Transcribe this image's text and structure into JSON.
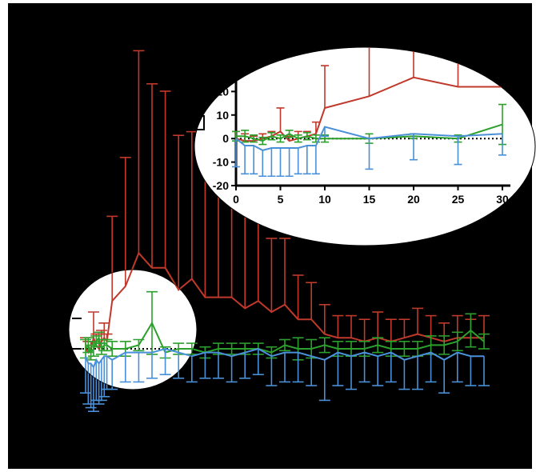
{
  "chart_data": [
    {
      "type": "line",
      "panel": "main",
      "x": [
        0,
        0.5,
        1,
        1.5,
        2,
        2.5,
        3,
        3.5,
        4,
        5,
        7.5,
        10,
        12.5,
        15,
        17.5,
        20,
        22.5,
        25,
        27.5,
        30,
        32.5,
        35,
        37.5,
        40,
        42.5,
        45,
        47.5,
        50,
        52.5,
        55,
        57.5,
        60,
        62.5,
        65,
        67.5,
        70,
        72.5,
        75
      ],
      "series": [
        {
          "color": "#c0392b",
          "values": [
            0,
            -1,
            0,
            3,
            1,
            0,
            2,
            3,
            2,
            13,
            17,
            26,
            22,
            22,
            16,
            19,
            14,
            14,
            14,
            11,
            13,
            10,
            12,
            8,
            8,
            4,
            3,
            3,
            2,
            3,
            2,
            3,
            4,
            3,
            2,
            3,
            3,
            3
          ],
          "err": [
            3,
            3,
            2,
            7,
            3,
            4,
            3,
            4,
            2,
            23,
            35,
            55,
            50,
            48,
            42,
            40,
            36,
            33,
            30,
            26,
            24,
            20,
            18,
            12,
            10,
            8,
            6,
            6,
            6,
            7,
            6,
            5,
            7,
            6,
            5,
            6,
            5,
            6
          ]
        },
        {
          "color": "#2ca02c",
          "values": [
            0,
            1,
            -1,
            0,
            2,
            3,
            0,
            1,
            1,
            0,
            0,
            1,
            7,
            -1,
            0,
            0,
            -1,
            0,
            0,
            0,
            0,
            -1,
            1,
            0,
            0,
            1,
            0,
            0,
            0,
            1,
            0,
            0,
            0,
            1,
            1,
            2,
            5,
            2
          ],
          "err": [
            5,
            4,
            4,
            4,
            3,
            3,
            3,
            3,
            3,
            4,
            4,
            3,
            17,
            3,
            3,
            3,
            3,
            3,
            3,
            3,
            3,
            3,
            3,
            6,
            5,
            4,
            4,
            4,
            4,
            4,
            4,
            4,
            4,
            5,
            5,
            5,
            9,
            4
          ]
        },
        {
          "color": "#4a90d9",
          "values": [
            -2,
            -4,
            -4,
            -5,
            -3,
            -4,
            -3,
            -2,
            -2,
            -3,
            -1,
            -1,
            -1,
            0,
            -1,
            -2,
            -1,
            -1,
            -2,
            -1,
            0,
            -2,
            -1,
            -1,
            -2,
            -3,
            -1,
            -2,
            -1,
            -2,
            -1,
            -3,
            -2,
            -1,
            -3,
            -1,
            -2,
            -2
          ],
          "err": [
            10,
            11,
            12,
            12,
            11,
            11,
            11,
            11,
            9,
            8,
            8,
            8,
            7,
            7,
            7,
            7,
            7,
            7,
            7,
            7,
            7,
            8,
            8,
            8,
            8,
            11,
            9,
            9,
            8,
            8,
            8,
            8,
            9,
            8,
            9,
            8,
            8,
            8
          ]
        }
      ]
    },
    {
      "type": "line",
      "panel": "inset",
      "x": [
        0,
        1,
        2,
        3,
        4,
        5,
        6,
        7,
        8,
        9,
        10,
        15,
        20,
        25,
        30
      ],
      "xticks": [
        "0",
        "5",
        "10",
        "15",
        "20",
        "25",
        "30"
      ],
      "yticks": [
        "-20",
        "-10",
        "0",
        "10",
        "20"
      ],
      "xlim": [
        0,
        30
      ],
      "ylim": [
        -20,
        30
      ],
      "series": [
        {
          "color": "#c0392b",
          "values": [
            0,
            -1,
            -1,
            0,
            1,
            3,
            -1,
            0,
            1,
            2,
            13,
            18,
            26,
            22,
            22
          ],
          "err": [
            3,
            3,
            2,
            2,
            2,
            10,
            2,
            3,
            2,
            5,
            18,
            27,
            30,
            28,
            27
          ]
        },
        {
          "color": "#2ca02c",
          "values": [
            1,
            1,
            0,
            -1,
            1,
            0,
            2,
            0,
            1,
            0,
            0,
            0,
            1,
            0,
            6
          ],
          "err": [
            4,
            5,
            3,
            3,
            3,
            3,
            3,
            3,
            3,
            3,
            3,
            4,
            2,
            3,
            17
          ]
        },
        {
          "color": "#4a90d9",
          "values": [
            0,
            -3,
            -3,
            -5,
            -4,
            -4,
            -4,
            -4,
            -3,
            -3,
            5,
            0,
            2,
            1,
            2
          ],
          "err": [
            12,
            12,
            12,
            11,
            12,
            12,
            12,
            11,
            12,
            12,
            4,
            13,
            11,
            12,
            9
          ]
        }
      ]
    }
  ]
}
